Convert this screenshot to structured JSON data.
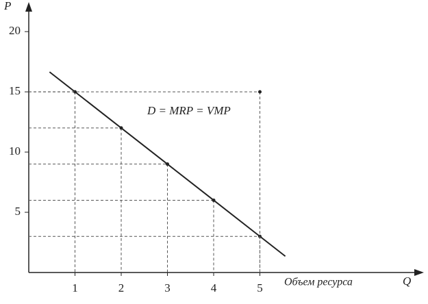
{
  "chart_data": {
    "type": "line",
    "y_axis_label": "P",
    "x_axis_label": "Q",
    "x_axis_caption": "Объем ресурса",
    "annotation": "D = MRP = VMP",
    "series": [
      {
        "color": "#222222",
        "x": [
          1,
          2,
          3,
          4,
          5
        ],
        "values": [
          15,
          12,
          9,
          6,
          3
        ]
      }
    ],
    "reference_points": {
      "x": [
        5
      ],
      "values": [
        15
      ]
    },
    "xlim": [
      0,
      8.4
    ],
    "ylim": [
      0,
      22
    ],
    "xticks": [
      1,
      2,
      3,
      4,
      5
    ],
    "yticks": [
      5,
      10,
      15,
      20
    ],
    "guides": true
  }
}
